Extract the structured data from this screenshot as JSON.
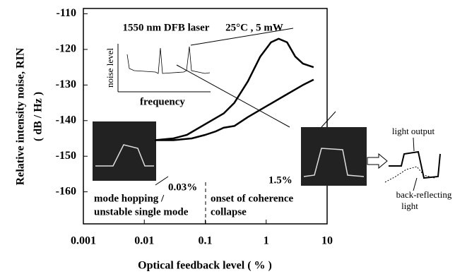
{
  "chart_data": {
    "type": "line",
    "xlabel": "Optical feedback level   ( % )",
    "ylabel": [
      "Relative intensity noise,   RIN",
      "( dB / Hz )"
    ],
    "xscale": "log",
    "xlim": [
      0.001,
      10
    ],
    "xticks": [
      0.001,
      0.01,
      0.1,
      1,
      10
    ],
    "ylim": [
      -169,
      -108.5
    ],
    "yticks": [
      -110,
      -120,
      -130,
      -140,
      -150,
      -160
    ],
    "series": [
      {
        "color": "#000000",
        "x": [
          0.015,
          0.03,
          0.05,
          0.1,
          0.2,
          0.3,
          0.5,
          0.8,
          1.2,
          1.6,
          2.2,
          3,
          4,
          6
        ],
        "values": [
          -145.5,
          -145,
          -144,
          -141,
          -138,
          -135,
          -129,
          -122,
          -118,
          -117,
          -118,
          -122,
          -124,
          -125
        ]
      },
      {
        "color": "#000000",
        "x": [
          0.015,
          0.03,
          0.06,
          0.1,
          0.15,
          0.2,
          0.3,
          0.5,
          1,
          2,
          4,
          6
        ],
        "values": [
          -145.5,
          -145.5,
          -145,
          -144,
          -143,
          -142,
          -141.5,
          -139,
          -136,
          -133,
          -130,
          -128.5
        ]
      }
    ],
    "annotations": {
      "laser": "1550 nm DFB laser",
      "condition": "25°C , 5 mW",
      "noise_level": "noise level",
      "frequency": "frequency",
      "low": "0.03%",
      "high": "1.5%",
      "regime1": [
        "mode hopping /",
        "unstable single mode"
      ],
      "regime2": [
        "onset of coherence",
        "collapse"
      ],
      "light_output": "light output",
      "back_reflecting": [
        "back-reflecting",
        "light"
      ]
    }
  }
}
